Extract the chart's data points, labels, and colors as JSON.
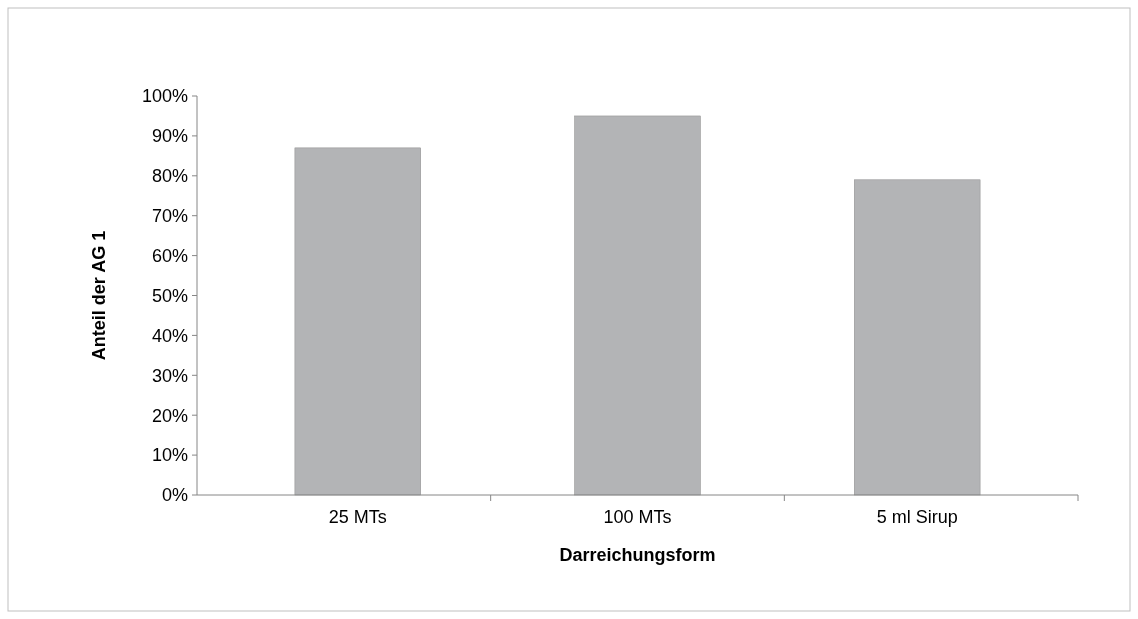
{
  "chart_data": {
    "type": "bar",
    "xlabel": "Darreichungsform",
    "ylabel": "Anteil der AG 1",
    "categories": [
      "25 MTs",
      "100 MTs",
      "5 ml Sirup"
    ],
    "values": [
      87,
      95,
      79
    ],
    "color": "#b3b4b6",
    "ylim": [
      0,
      100
    ],
    "yticks": [
      {
        "value": 0,
        "label": "0%"
      },
      {
        "value": 10,
        "label": "10%"
      },
      {
        "value": 20,
        "label": "20%"
      },
      {
        "value": 30,
        "label": "30%"
      },
      {
        "value": 40,
        "label": "40%"
      },
      {
        "value": 50,
        "label": "50%"
      },
      {
        "value": 60,
        "label": "60%"
      },
      {
        "value": 70,
        "label": "70%"
      },
      {
        "value": 80,
        "label": "80%"
      },
      {
        "value": 90,
        "label": "90%"
      },
      {
        "value": 100,
        "label": "100%"
      }
    ]
  }
}
